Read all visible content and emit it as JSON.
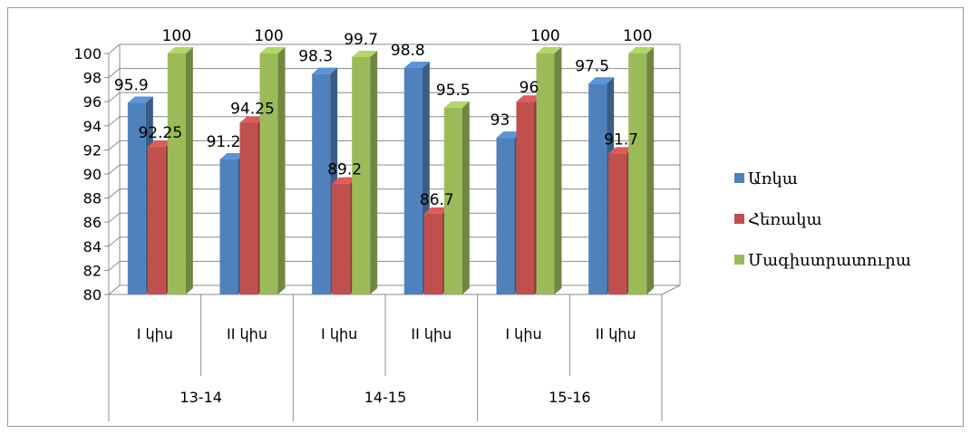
{
  "chart_data": {
    "type": "bar",
    "categories": [
      "I կիս",
      "II կիս",
      "I կիս",
      "II կիս",
      "I կիս",
      "II կիս"
    ],
    "groups": [
      {
        "label": "13-14",
        "span": 2
      },
      {
        "label": "14-15",
        "span": 2
      },
      {
        "label": "15-16",
        "span": 2
      }
    ],
    "series": [
      {
        "name": "Առկա",
        "color": "#4f81bd",
        "values": [
          95.9,
          91.2,
          98.3,
          98.8,
          93,
          97.5
        ]
      },
      {
        "name": "Հեռակա",
        "color": "#c0504d",
        "values": [
          92.25,
          94.25,
          89.2,
          86.7,
          96,
          91.7
        ]
      },
      {
        "name": "Մագիստրատուրա",
        "color": "#9bbb59",
        "values": [
          100,
          100,
          99.7,
          95.5,
          100,
          100
        ]
      }
    ],
    "data_labels": [
      [
        "95.9",
        "91.2",
        "98.3",
        "98.8",
        "93",
        "97.5"
      ],
      [
        "92.25",
        "94.25",
        "89.2",
        "86.7",
        "96",
        "91.7"
      ],
      [
        "100",
        "100",
        "99.7",
        "95.5",
        "100",
        "100"
      ]
    ],
    "y_ticks": [
      "80",
      "82",
      "84",
      "86",
      "88",
      "90",
      "92",
      "94",
      "96",
      "98",
      "100"
    ],
    "ylim": [
      80,
      100
    ],
    "grid": true,
    "legend_position": "right",
    "style": "3d-clustered-column"
  }
}
